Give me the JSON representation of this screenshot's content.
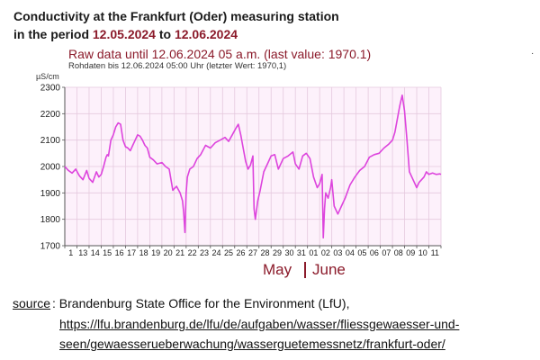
{
  "header": {
    "title_line1": "Conductivity at the Frankfurt (Oder) measuring station",
    "title_line2_prefix": "in the period ",
    "date_from": "12.05.2024",
    "title_line2_mid": " to ",
    "date_to": "12.06.2024",
    "subtitle": "Raw data until 12.06.2024 05 a.m. (last value: 1970.1)",
    "subtitle_de": "Rohdaten bis 12.06.2024 05:00 Uhr (letzter Wert: 1970,1)"
  },
  "footer": {
    "source_label": "source",
    "source_text": ": Brandenburg State Office for the Environment (LfU),",
    "url_line1": "https://lfu.brandenburg.de/lfu/de/aufgaben/wasser/fliessgewaesser-und-",
    "url_line2": "seen/gewaesserueberwachung/wasserguetemessnetz/frankfurt-oder/"
  },
  "months": {
    "may": "May",
    "june": "June"
  },
  "stray_mark": "·",
  "colors": {
    "line": "#dd44dd",
    "plot_bg": "#fdf1fb",
    "grid": "#e5c9de",
    "accent": "#8b1a2a"
  },
  "chart_data": {
    "type": "line",
    "ylabel": "µS/cm",
    "ylim": [
      1700,
      2300
    ],
    "yticks": [
      1700,
      1800,
      1900,
      2000,
      2100,
      2200,
      2300
    ],
    "xlim": [
      12,
      43
    ],
    "xtick_labels": [
      "1",
      "13",
      "14",
      "15",
      "16",
      "17",
      "18",
      "19",
      "20",
      "21",
      "22",
      "23",
      "24",
      "25",
      "26",
      "27",
      "28",
      "29",
      "30",
      "31",
      "01",
      "02",
      "03",
      "04",
      "05",
      "06",
      "07",
      "08",
      "09",
      "10",
      "11"
    ],
    "grid": true,
    "series": [
      {
        "x": [
          12,
          12.3,
          12.6,
          12.9,
          13.2,
          13.5,
          13.8,
          14,
          14.3,
          14.6,
          14.8,
          15,
          15.2,
          15.4,
          15.5,
          15.6,
          15.8,
          16,
          16.2,
          16.4,
          16.6,
          16.8,
          17,
          17.2,
          17.4,
          17.6,
          17.8,
          18,
          18.2,
          18.4,
          18.6,
          18.8,
          19,
          19.3,
          19.6,
          20,
          20.3,
          20.6,
          20.9,
          21.2,
          21.5,
          21.7,
          21.8,
          21.9,
          22,
          22.1,
          22.3,
          22.6,
          22.9,
          23.2,
          23.6,
          24,
          24.4,
          24.8,
          25.2,
          25.5,
          25.8,
          26.1,
          26.3,
          26.5,
          26.7,
          26.9,
          27.1,
          27.3,
          27.5,
          27.6,
          27.7,
          27.9,
          28.1,
          28.4,
          28.7,
          29,
          29.3,
          29.6,
          30,
          30.4,
          30.8,
          31,
          31.3,
          31.6,
          31.9,
          32.2,
          32.5,
          32.8,
          33,
          33.2,
          33.3,
          33.4,
          33.5,
          33.7,
          33.9,
          34,
          34.2,
          34.5,
          34.8,
          35.1,
          35.5,
          35.9,
          36.3,
          36.7,
          37.1,
          37.5,
          37.9,
          38.3,
          38.7,
          39,
          39.2,
          39.4,
          39.6,
          39.8,
          40,
          40.2,
          40.4,
          40.6,
          40.8,
          41,
          41.2,
          41.4,
          41.6,
          41.8,
          42,
          42.3,
          42.6,
          42.9,
          43
        ],
        "y": [
          2000,
          1985,
          1975,
          1990,
          1965,
          1950,
          1985,
          1955,
          1940,
          1980,
          1960,
          1970,
          2000,
          2035,
          2045,
          2040,
          2100,
          2120,
          2150,
          2165,
          2160,
          2100,
          2075,
          2070,
          2060,
          2080,
          2100,
          2120,
          2115,
          2100,
          2080,
          2070,
          2035,
          2025,
          2010,
          2015,
          2000,
          1990,
          1910,
          1925,
          1900,
          1870,
          1825,
          1750,
          1900,
          1960,
          1990,
          2000,
          2030,
          2045,
          2080,
          2070,
          2090,
          2100,
          2110,
          2095,
          2120,
          2145,
          2160,
          2120,
          2070,
          2020,
          1990,
          2005,
          2040,
          1840,
          1800,
          1870,
          1910,
          1980,
          2010,
          2040,
          2045,
          1990,
          2030,
          2040,
          2055,
          2010,
          1990,
          2040,
          2050,
          2030,
          1960,
          1920,
          1935,
          1970,
          1730,
          1840,
          1900,
          1880,
          1920,
          1950,
          1850,
          1820,
          1850,
          1880,
          1930,
          1960,
          1985,
          2000,
          2035,
          2045,
          2050,
          2070,
          2085,
          2100,
          2130,
          2180,
          2230,
          2270,
          2210,
          2100,
          1980,
          1960,
          1940,
          1920,
          1940,
          1950,
          1960,
          1980,
          1970,
          1975,
          1970,
          1972,
          1970.1
        ]
      }
    ]
  }
}
